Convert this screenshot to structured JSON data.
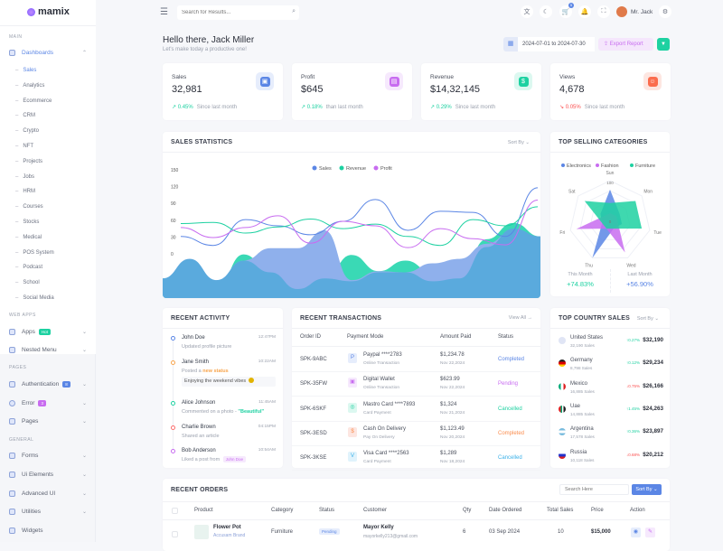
{
  "brand": {
    "name": "mamix"
  },
  "header": {
    "search_placeholder": "Search for Results...",
    "cart_count": "5",
    "user_name": "Mr. Jack"
  },
  "sidebar": {
    "sections": {
      "main": "MAIN",
      "web_apps": "WEB APPS",
      "pages": "PAGES",
      "general": "GENERAL"
    },
    "dashboards": "Dashboards",
    "dash_items": [
      "Sales",
      "Analytics",
      "Ecommerce",
      "CRM",
      "Crypto",
      "NFT",
      "Projects",
      "Jobs",
      "HRM",
      "Courses",
      "Stocks",
      "Medical",
      "POS System",
      "Podcast",
      "School",
      "Social Media"
    ],
    "apps": {
      "label": "Apps",
      "badge": "Hot"
    },
    "nested": "Nested Menu",
    "auth": {
      "label": "Authentication",
      "badge": "8"
    },
    "error": {
      "label": "Error",
      "badge": "3"
    },
    "pages": "Pages",
    "forms": "Forms",
    "ui": "Ui Elements",
    "advanced": "Advanced UI",
    "utilities": "Utilities",
    "widgets": "Widgets"
  },
  "greeting": {
    "title": "Hello there, Jack Miller",
    "subtitle": "Let's make today a productive one!"
  },
  "toolbar": {
    "date_range": "2024-07-01 to 2024-07-30",
    "export": "Export Report"
  },
  "stats": [
    {
      "label": "Sales",
      "value": "32,981",
      "change": "0.45%",
      "note": "Since last month",
      "dir": "up",
      "color": "#5b86e5",
      "bg": "#e6edfc"
    },
    {
      "label": "Profit",
      "value": "$645",
      "change": "0.18%",
      "note": "than last month",
      "dir": "up",
      "color": "#c86cf0",
      "bg": "#f6e9fd"
    },
    {
      "label": "Revenue",
      "value": "$14,32,145",
      "change": "0.29%",
      "note": "Since last month",
      "dir": "up",
      "color": "#1dd1a1",
      "bg": "#dcf8f0"
    },
    {
      "label": "Views",
      "value": "4,678",
      "change": "0.05%",
      "note": "Since last month",
      "dir": "down",
      "color": "#fb6d4e",
      "bg": "#fde6e1"
    }
  ],
  "sales_stats": {
    "title": "SALES STATISTICS",
    "sort": "Sort By"
  },
  "chart_data": [
    {
      "type": "line",
      "title": "SALES STATISTICS",
      "yticks": [
        150,
        120,
        90,
        60,
        30,
        0
      ],
      "ylim": [
        -73,
        150
      ],
      "grid": false,
      "legend": "top",
      "series": [
        {
          "name": "Sales",
          "color": "#5b86e5",
          "values": [
            31,
            15,
            61,
            50,
            34,
            58,
            97,
            42,
            76,
            74,
            31,
            118
          ]
        },
        {
          "name": "Revenue",
          "color": "#1dd1a1",
          "values": [
            54,
            56,
            37,
            48,
            62,
            45,
            53,
            31,
            15,
            61,
            50,
            84
          ]
        },
        {
          "name": "Profit",
          "color": "#c86cf0",
          "values": [
            47,
            29,
            47,
            68,
            19,
            58,
            50,
            11,
            45,
            27,
            16,
            96
          ]
        }
      ],
      "area_series": [
        {
          "color": "#3ad9b5",
          "values": [
            -44,
            -12,
            -60,
            -1,
            -33,
            -63,
            -44,
            -2,
            -31,
            -12,
            -33,
            -44,
            26,
            55,
            31
          ]
        },
        {
          "color": "#8fb0ec",
          "values": [
            -44,
            -9,
            -47,
            -12,
            10,
            10,
            42,
            -47,
            -31,
            -33,
            -17,
            -9,
            18,
            42,
            31
          ]
        },
        {
          "color": "#5aaadd",
          "values": [
            -44,
            -9,
            -47,
            -12,
            -33,
            -63,
            -44,
            -49,
            -33,
            -33,
            -49,
            -44,
            12,
            45,
            31
          ]
        }
      ]
    },
    {
      "type": "radar",
      "title": "TOP SELLING CATEGORIES",
      "categories": [
        "Sun",
        "Mon",
        "Tue",
        "Wed",
        "Thu",
        "Fri",
        "Sat"
      ],
      "max": 100,
      "max_label": "100",
      "center_label": "0",
      "series": [
        {
          "name": "Electronics",
          "color": "#5b86e5",
          "values": [
            78,
            30,
            30,
            20,
            100,
            20,
            30
          ]
        },
        {
          "name": "Fashion",
          "color": "#c86cf0",
          "values": [
            20,
            20,
            20,
            85,
            20,
            85,
            20
          ]
        },
        {
          "name": "Furniture",
          "color": "#1dd1a1",
          "values": [
            45,
            80,
            80,
            20,
            20,
            20,
            80
          ]
        }
      ]
    }
  ],
  "categories_card": {
    "title": "TOP SELLING CATEGORIES",
    "this_label": "This Month",
    "this_value": "+74.83%",
    "last_label": "Last Month",
    "last_value": "+56.90%"
  },
  "activity": {
    "title": "RECENT ACTIVITY",
    "items": [
      {
        "name": "John Doe",
        "time": "12:47PM",
        "text": "Updated profile picture",
        "highlight": "",
        "color": "#5b86e5"
      },
      {
        "name": "Jane Smith",
        "time": "10:22AM",
        "text": "Posted a ",
        "highlight": "new status",
        "quote": "Enjoying the weekend vibes",
        "color": "#f7a44c"
      },
      {
        "name": "Alice Johnson",
        "time": "11:45AM",
        "text": "Commented on a photo - ",
        "highlight": "\"Beautiful\"",
        "color": "#1dd1a1"
      },
      {
        "name": "Charlie Brown",
        "time": "04:15PM",
        "text": "Shared an article",
        "highlight": "",
        "color": "#fb6d6d"
      },
      {
        "name": "Bob Anderson",
        "time": "10:54AM",
        "text": "Liked a post from ",
        "tag": "John Doe",
        "color": "#c86cf0"
      }
    ]
  },
  "transactions": {
    "title": "RECENT TRANSACTIONS",
    "view_all": "View All",
    "headers": [
      "Order ID",
      "Payment Mode",
      "Amount Paid",
      "Status"
    ],
    "rows": [
      {
        "id": "SPK-9ABC",
        "mode": "Paypal ****2783",
        "sub": "Online Transaction",
        "amount": "$1,234.78",
        "date": "Nov 22,2024",
        "status": "Completed",
        "color": "#5b86e5",
        "bg": "#e6edfc"
      },
      {
        "id": "SPK-35FW",
        "mode": "Digital Wallet",
        "sub": "Online Transaction",
        "amount": "$623.99",
        "date": "Nov 22,2024",
        "status": "Pending",
        "color": "#c86cf0",
        "bg": "#f6e9fd"
      },
      {
        "id": "SPK-6SKF",
        "mode": "Mastro Card ****7893",
        "sub": "Card Payment",
        "amount": "$1,324",
        "date": "Nov 21,2024",
        "status": "Cancelled",
        "color": "#1dd1a1",
        "bg": "#dcf8f0"
      },
      {
        "id": "SPK-3ESD",
        "mode": "Cash On Delivery",
        "sub": "Pay On Delivery",
        "amount": "$1,123.49",
        "date": "Nov 20,2024",
        "status": "Completed",
        "color": "#fb8d4e",
        "bg": "#fde6e1"
      },
      {
        "id": "SPK-3KSE",
        "mode": "Visa Card ****2563",
        "sub": "Card Payment",
        "amount": "$1,289",
        "date": "Nov 18,2024",
        "status": "Cancelled",
        "color": "#3ab0e8",
        "bg": "#e0f3fc"
      }
    ]
  },
  "countries": {
    "title": "TOP COUNTRY SALES",
    "sort": "Sort By",
    "items": [
      {
        "name": "United States",
        "sales": "32,190 Sales",
        "change": "0.27%",
        "dir": "up",
        "value": "$32,190"
      },
      {
        "name": "Germany",
        "sales": "8,798 Sales",
        "change": "0.12%",
        "dir": "up",
        "value": "$29,234"
      },
      {
        "name": "Mexico",
        "sales": "16,885 Sales",
        "change": "0.75%",
        "dir": "down",
        "value": "$26,166"
      },
      {
        "name": "Uae",
        "sales": "14,885 Sales",
        "change": "1.45%",
        "dir": "up",
        "value": "$24,263"
      },
      {
        "name": "Argentina",
        "sales": "17,578 Sales",
        "change": "0.36%",
        "dir": "up",
        "value": "$23,897"
      },
      {
        "name": "Russia",
        "sales": "10,118 Sales",
        "change": "0.68%",
        "dir": "down",
        "value": "$20,212"
      }
    ]
  },
  "orders": {
    "title": "RECENT ORDERS",
    "search_placeholder": "Search Here",
    "sort": "Sort By",
    "headers": [
      "Product",
      "Category",
      "Status",
      "Customer",
      "Qty",
      "Date Ordered",
      "Total Sales",
      "Price",
      "Action"
    ],
    "rows": [
      {
        "product": "Flower Pot",
        "brand": "Accusam Brand",
        "category": "Furniture",
        "status": "Pending",
        "customer": "Mayor Kelly",
        "email": "mayorkelly213@gmail.com",
        "qty": "6",
        "date": "03 Sep 2024",
        "total": "10",
        "price": "$15,000"
      }
    ]
  }
}
